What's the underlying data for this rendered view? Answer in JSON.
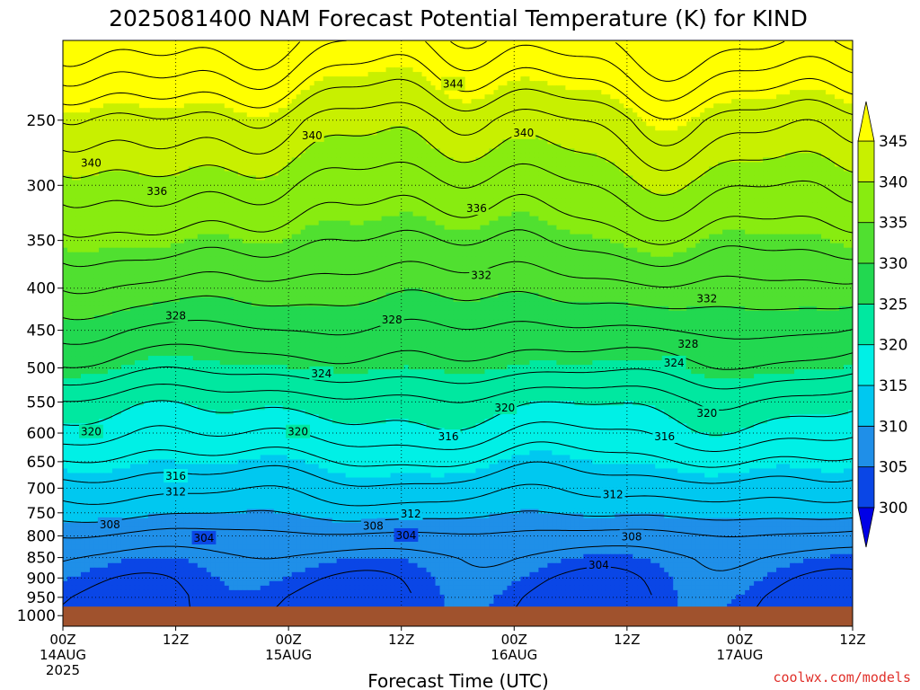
{
  "chart_data": {
    "type": "heatmap",
    "title": "2025081400 NAM Forecast Potential Temperature (K) for KIND",
    "xlabel": "Forecast Time (UTC)",
    "ylabel": "",
    "y_ticks": [
      250,
      300,
      350,
      400,
      450,
      500,
      550,
      600,
      650,
      700,
      750,
      800,
      850,
      900,
      950,
      1000
    ],
    "y_range": [
      200,
      1030
    ],
    "y_scale": "log",
    "y_reversed": true,
    "x_ticks": [
      {
        "h": 0,
        "line1": "00Z",
        "line2": "14AUG",
        "line3": "2025"
      },
      {
        "h": 12,
        "line1": "12Z",
        "line2": "",
        "line3": ""
      },
      {
        "h": 24,
        "line1": "00Z",
        "line2": "15AUG",
        "line3": ""
      },
      {
        "h": 36,
        "line1": "12Z",
        "line2": "",
        "line3": ""
      },
      {
        "h": 48,
        "line1": "00Z",
        "line2": "16AUG",
        "line3": ""
      },
      {
        "h": 60,
        "line1": "12Z",
        "line2": "",
        "line3": ""
      },
      {
        "h": 72,
        "line1": "00Z",
        "line2": "17AUG",
        "line3": ""
      },
      {
        "h": 84,
        "line1": "12Z",
        "line2": "",
        "line3": ""
      }
    ],
    "x_range_hours": [
      0,
      84
    ],
    "colorbar": {
      "levels": [
        300,
        305,
        310,
        315,
        320,
        325,
        330,
        335,
        340,
        345
      ],
      "colors": [
        "#0000e6",
        "#0a46e6",
        "#1f8fe8",
        "#00c8f0",
        "#00f0e6",
        "#00e8a0",
        "#22d850",
        "#50e030",
        "#88ec10",
        "#c8f000",
        "#ffff00"
      ],
      "extend": "both"
    },
    "surface_pressure": 975,
    "surface_color": "#a0522d",
    "contour_interval": 2,
    "grid": true,
    "contour_labels": [
      {
        "value": "344",
        "h": 41.5,
        "p": 226
      },
      {
        "value": "340",
        "h": 26.5,
        "p": 261
      },
      {
        "value": "340",
        "h": 49,
        "p": 259
      },
      {
        "value": "340",
        "h": 3,
        "p": 282
      },
      {
        "value": "336",
        "h": 10,
        "p": 305
      },
      {
        "value": "336",
        "h": 44,
        "p": 320
      },
      {
        "value": "332",
        "h": 44.5,
        "p": 386
      },
      {
        "value": "332",
        "h": 68.5,
        "p": 412
      },
      {
        "value": "328",
        "h": 12,
        "p": 432
      },
      {
        "value": "328",
        "h": 35,
        "p": 437
      },
      {
        "value": "328",
        "h": 66.5,
        "p": 468
      },
      {
        "value": "324",
        "h": 27.5,
        "p": 508
      },
      {
        "value": "324",
        "h": 65,
        "p": 493
      },
      {
        "value": "320",
        "h": 47,
        "p": 559
      },
      {
        "value": "320",
        "h": 68.5,
        "p": 568
      },
      {
        "value": "320",
        "h": 3,
        "p": 598
      },
      {
        "value": "320",
        "h": 25,
        "p": 598
      },
      {
        "value": "316",
        "h": 41,
        "p": 606
      },
      {
        "value": "316",
        "h": 64,
        "p": 606
      },
      {
        "value": "316",
        "h": 12,
        "p": 677
      },
      {
        "value": "312",
        "h": 12,
        "p": 707
      },
      {
        "value": "312",
        "h": 58.5,
        "p": 713
      },
      {
        "value": "312",
        "h": 37,
        "p": 752
      },
      {
        "value": "308",
        "h": 5,
        "p": 775
      },
      {
        "value": "308",
        "h": 33,
        "p": 778
      },
      {
        "value": "308",
        "h": 60.5,
        "p": 802
      },
      {
        "value": "304",
        "h": 15,
        "p": 805
      },
      {
        "value": "304",
        "h": 36.5,
        "p": 799
      },
      {
        "value": "304",
        "h": 57,
        "p": 868
      }
    ]
  },
  "credit": "coolwx.com/models"
}
